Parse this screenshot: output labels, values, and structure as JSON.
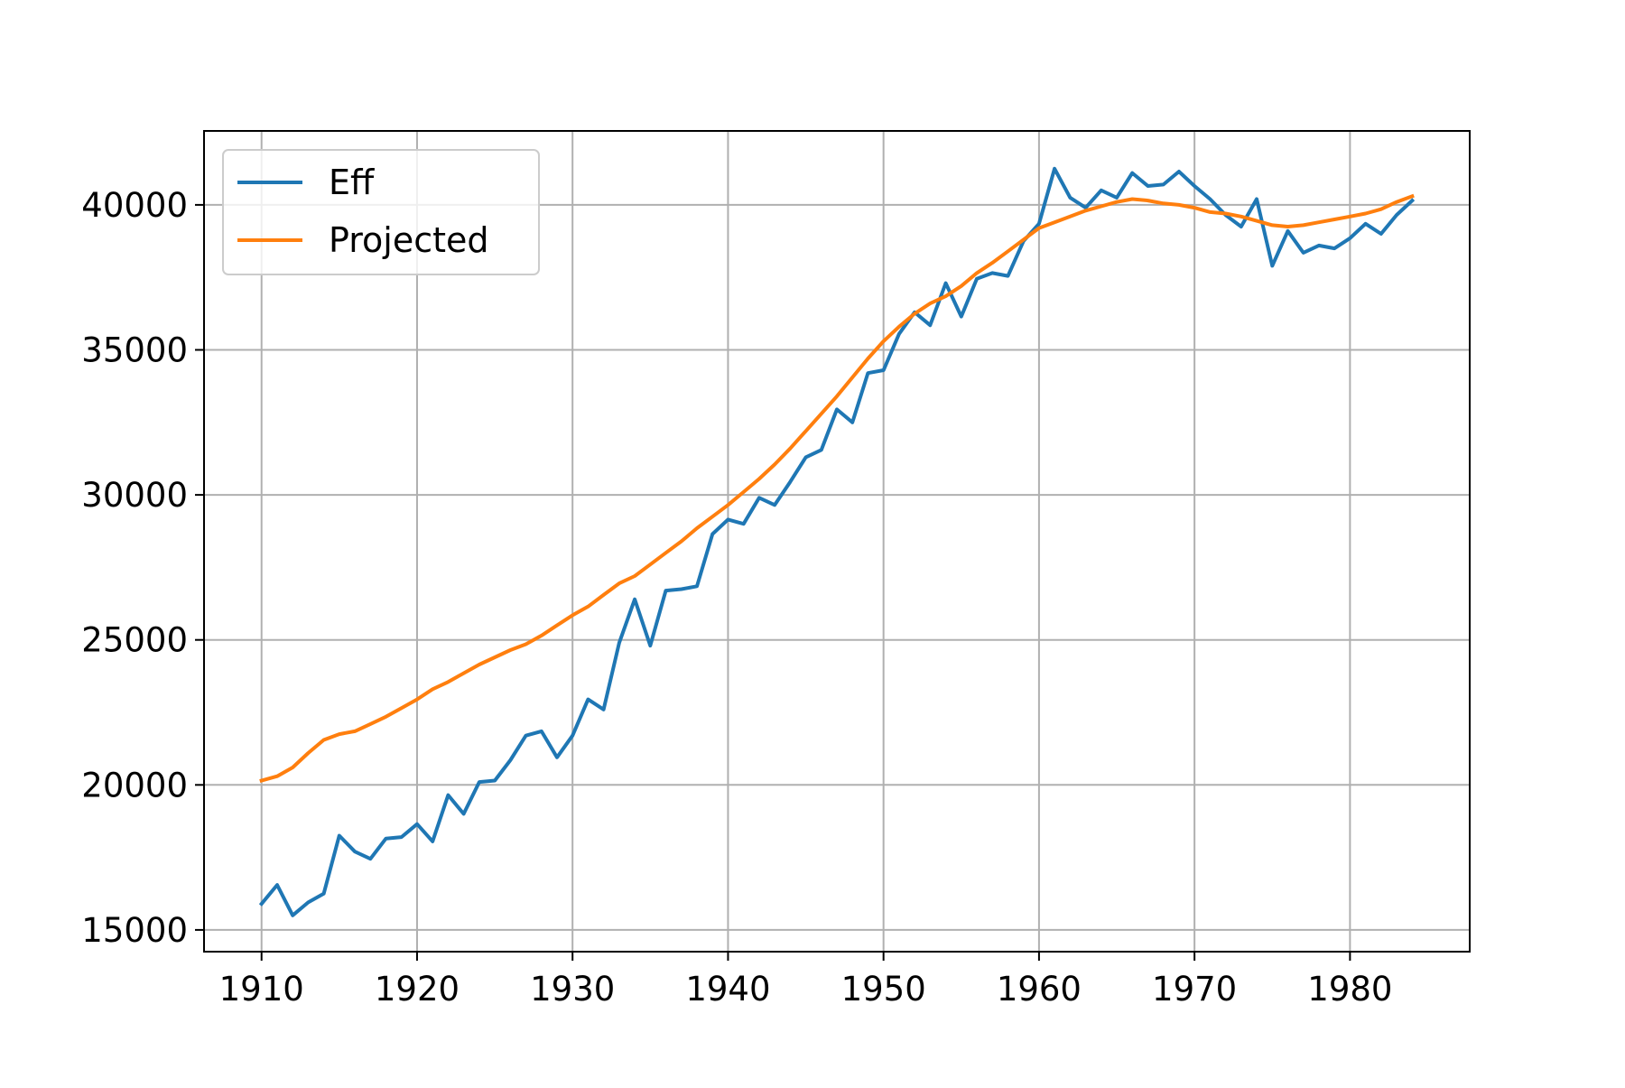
{
  "chart_data": {
    "type": "line",
    "title": "",
    "xlabel": "",
    "ylabel": "",
    "xlim": [
      1906.3,
      1987.7
    ],
    "ylim": [
      14250,
      42550
    ],
    "xticks": [
      1910,
      1920,
      1930,
      1940,
      1950,
      1960,
      1970,
      1980
    ],
    "yticks": [
      15000,
      20000,
      25000,
      30000,
      35000,
      40000
    ],
    "xtick_labels": [
      "1910",
      "1920",
      "1930",
      "1940",
      "1950",
      "1960",
      "1970",
      "1980"
    ],
    "ytick_labels": [
      "15000",
      "20000",
      "25000",
      "30000",
      "35000",
      "40000"
    ],
    "grid": true,
    "legend_position": "upper-left",
    "x": [
      1910,
      1911,
      1912,
      1913,
      1914,
      1915,
      1916,
      1917,
      1918,
      1919,
      1920,
      1921,
      1922,
      1923,
      1924,
      1925,
      1926,
      1927,
      1928,
      1929,
      1930,
      1931,
      1932,
      1933,
      1934,
      1935,
      1936,
      1937,
      1938,
      1939,
      1940,
      1941,
      1942,
      1943,
      1944,
      1945,
      1946,
      1947,
      1948,
      1949,
      1950,
      1951,
      1952,
      1953,
      1954,
      1955,
      1956,
      1957,
      1958,
      1959,
      1960,
      1961,
      1962,
      1963,
      1964,
      1965,
      1966,
      1967,
      1968,
      1969,
      1970,
      1971,
      1972,
      1973,
      1974,
      1975,
      1976,
      1977,
      1978,
      1979,
      1980,
      1981,
      1982,
      1983,
      1984
    ],
    "series": [
      {
        "name": "Eff",
        "color": "#1f77b4",
        "values": [
          15900,
          16550,
          15500,
          15950,
          16250,
          18250,
          17700,
          17450,
          18150,
          18200,
          18650,
          18050,
          19650,
          19000,
          20100,
          20150,
          20850,
          21700,
          21850,
          20950,
          21700,
          22950,
          22600,
          24900,
          26400,
          24800,
          26700,
          26750,
          26850,
          28650,
          29150,
          29000,
          29900,
          29650,
          30450,
          31300,
          31550,
          32950,
          32500,
          34200,
          34300,
          35550,
          36300,
          35850,
          37300,
          36150,
          37450,
          37650,
          37550,
          38750,
          39350,
          41250,
          40250,
          39900,
          40500,
          40250,
          41100,
          40650,
          40700,
          41150,
          40650,
          40200,
          39650,
          39250,
          40200,
          37900,
          39100,
          38350,
          38600,
          38500,
          38850,
          39350,
          39000,
          39650,
          40150
        ]
      },
      {
        "name": "Projected",
        "color": "#ff7f0e",
        "values": [
          20150,
          20300,
          20600,
          21100,
          21550,
          21750,
          21850,
          22100,
          22350,
          22650,
          22950,
          23300,
          23550,
          23850,
          24150,
          24400,
          24650,
          24850,
          25150,
          25500,
          25850,
          26150,
          26550,
          26950,
          27200,
          27600,
          28000,
          28400,
          28850,
          29250,
          29650,
          30100,
          30550,
          31050,
          31600,
          32200,
          32800,
          33400,
          34050,
          34700,
          35300,
          35800,
          36250,
          36600,
          36850,
          37200,
          37650,
          38000,
          38400,
          38800,
          39200,
          39400,
          39600,
          39800,
          39950,
          40100,
          40200,
          40150,
          40050,
          40000,
          39900,
          39750,
          39700,
          39600,
          39450,
          39300,
          39250,
          39300,
          39400,
          39500,
          39600,
          39700,
          39850,
          40100,
          40300
        ]
      }
    ]
  }
}
